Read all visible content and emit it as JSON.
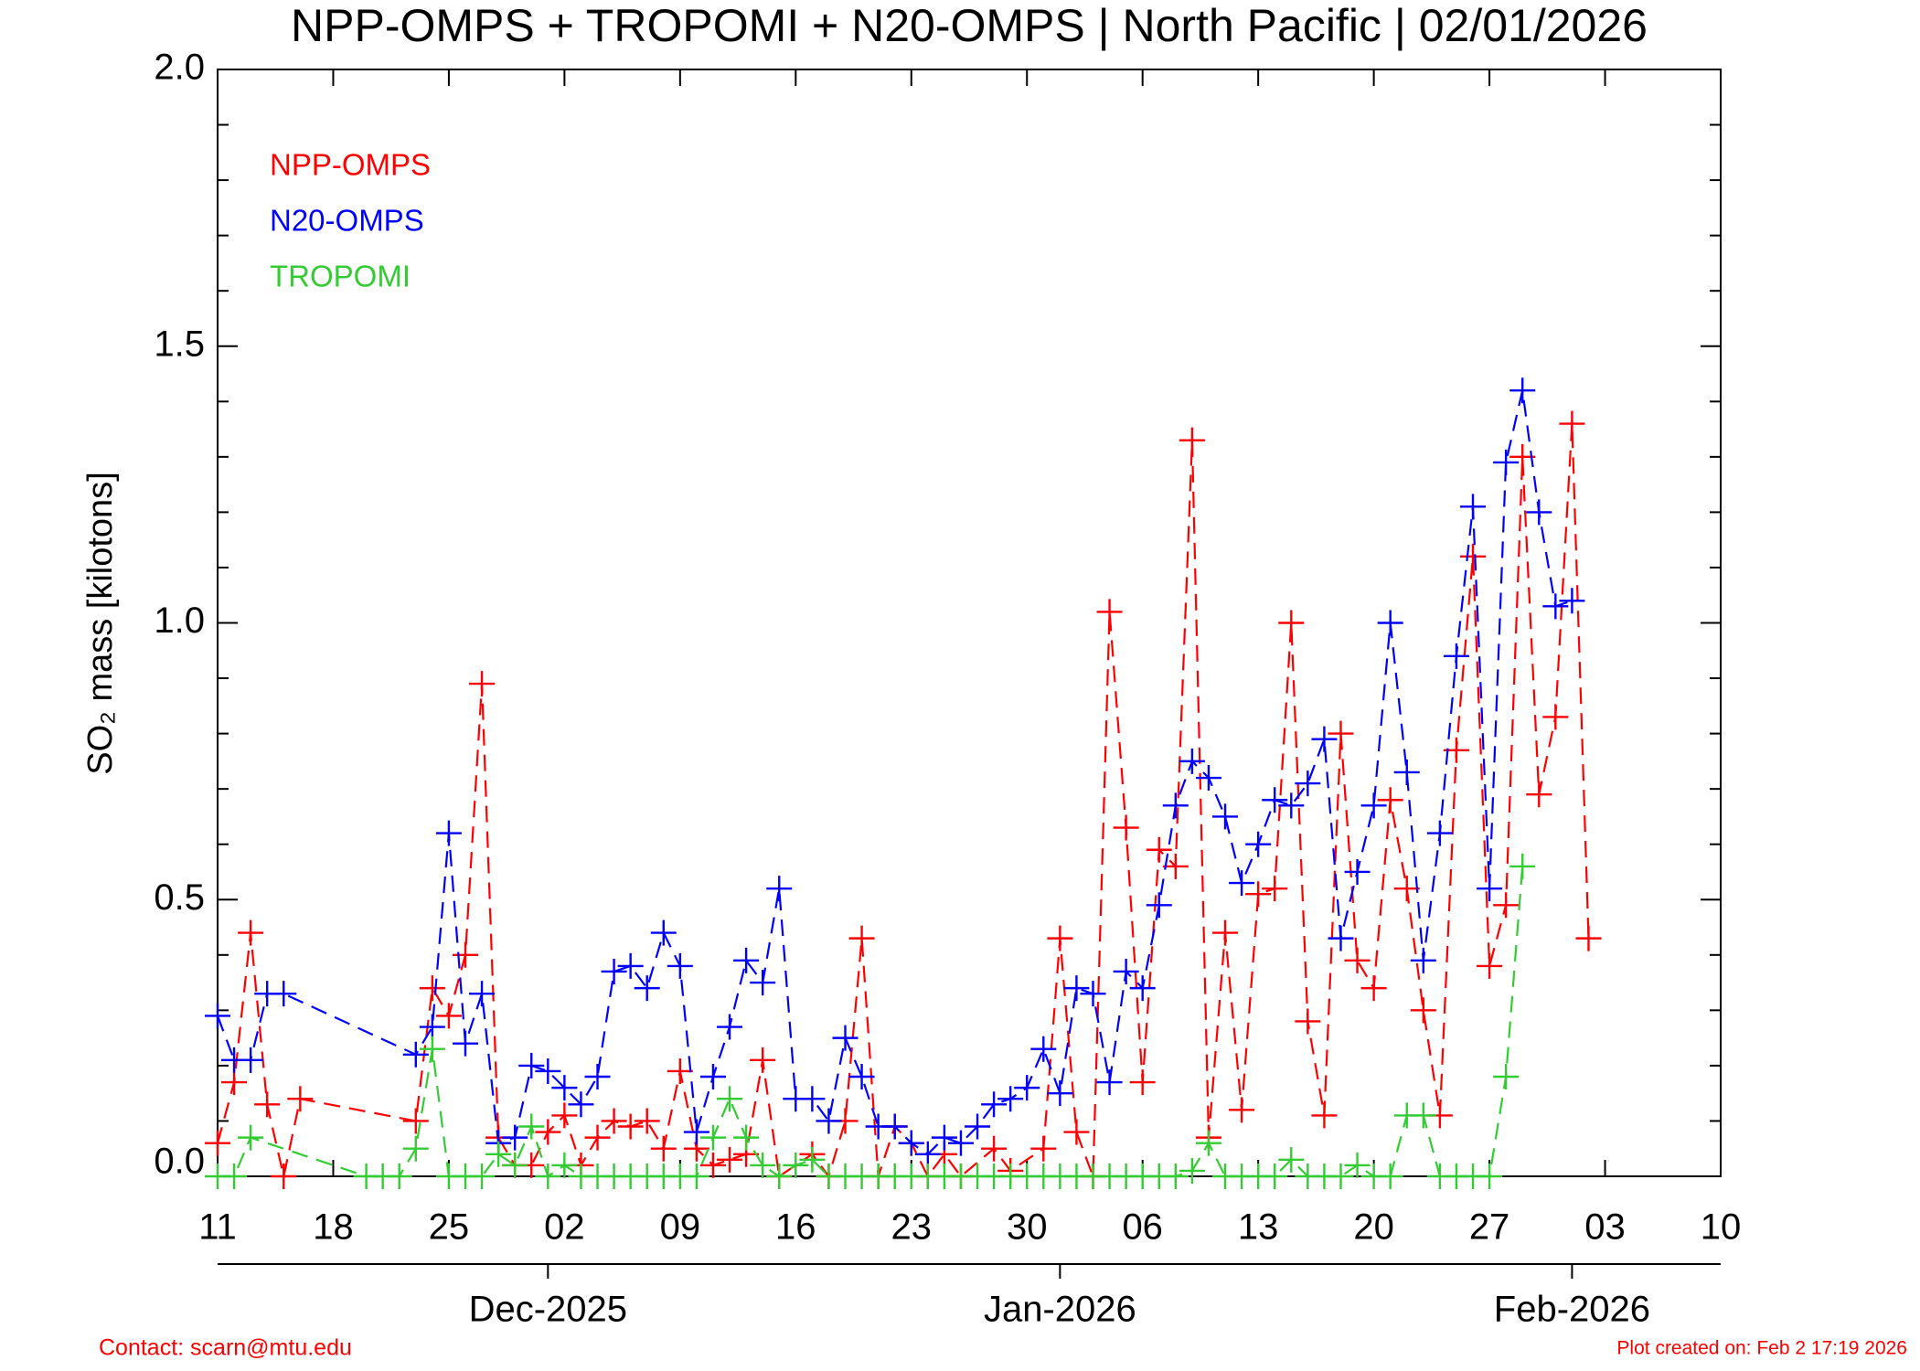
{
  "chart_data": {
    "type": "line",
    "title": "NPP-OMPS + TROPOMI + N20-OMPS | North Pacific | 02/01/2026",
    "y_label": "SO₂ mass [kilotons]",
    "contact": "Contact: scarn@mtu.edu",
    "created": "Plot created on: Feb  2 17:19 2026",
    "xlim": [
      "2025-11-11",
      "2026-02-10"
    ],
    "xticks": [
      {
        "value": "2025-11-11",
        "label": "11"
      },
      {
        "value": "2025-11-18",
        "label": "18"
      },
      {
        "value": "2025-11-25",
        "label": "25"
      },
      {
        "value": "2025-12-02",
        "label": "02"
      },
      {
        "value": "2025-12-09",
        "label": "09"
      },
      {
        "value": "2025-12-16",
        "label": "16"
      },
      {
        "value": "2025-12-23",
        "label": "23"
      },
      {
        "value": "2025-12-30",
        "label": "30"
      },
      {
        "value": "2026-01-06",
        "label": "06"
      },
      {
        "value": "2026-01-13",
        "label": "13"
      },
      {
        "value": "2026-01-20",
        "label": "20"
      },
      {
        "value": "2026-01-27",
        "label": "27"
      },
      {
        "value": "2026-02-03",
        "label": "03"
      },
      {
        "value": "2026-02-10",
        "label": "10"
      }
    ],
    "month_ticks": [
      {
        "value": "2025-12-01",
        "label": "Dec-2025"
      },
      {
        "value": "2026-01-01",
        "label": "Jan-2026"
      },
      {
        "value": "2026-02-01",
        "label": "Feb-2026"
      }
    ],
    "ylim": [
      0,
      2.0
    ],
    "yticks": [
      {
        "value": 0,
        "label": "0.0"
      },
      0.5,
      {
        "value": 1,
        "label": "1.0"
      },
      1.5,
      {
        "value": 2,
        "label": "2.0"
      }
    ],
    "yminorticks": [
      0.1,
      0.2,
      0.3,
      0.4,
      0.6,
      0.7,
      0.8,
      0.9,
      1.1,
      1.2,
      1.3,
      1.4,
      1.6,
      1.7,
      1.8,
      1.9
    ],
    "series": [
      {
        "name": "NPP-OMPS",
        "color": "#ff0000",
        "x": [
          "2025-11-11",
          "2025-11-12",
          "2025-11-13",
          "2025-11-14",
          "2025-11-15",
          "2025-11-16",
          "2025-11-23",
          "2025-11-24",
          "2025-11-25",
          "2025-11-26",
          "2025-11-27",
          "2025-11-28",
          "2025-11-29",
          "2025-11-30",
          "2025-12-01",
          "2025-12-02",
          "2025-12-03",
          "2025-12-04",
          "2025-12-05",
          "2025-12-06",
          "2025-12-07",
          "2025-12-08",
          "2025-12-09",
          "2025-12-10",
          "2025-12-11",
          "2025-12-12",
          "2025-12-13",
          "2025-12-14",
          "2025-12-15",
          "2025-12-17",
          "2025-12-18",
          "2025-12-19",
          "2025-12-20",
          "2025-12-21",
          "2025-12-22",
          "2025-12-23",
          "2025-12-24",
          "2025-12-25",
          "2025-12-26",
          "2025-12-28",
          "2025-12-29",
          "2025-12-31",
          "2026-01-01",
          "2026-01-02",
          "2026-01-03",
          "2026-01-04",
          "2026-01-05",
          "2026-01-06",
          "2026-01-07",
          "2026-01-08",
          "2026-01-09",
          "2026-01-10",
          "2026-01-11",
          "2026-01-12",
          "2026-01-13",
          "2026-01-14",
          "2026-01-15",
          "2026-01-16",
          "2026-01-17",
          "2026-01-18",
          "2026-01-19",
          "2026-01-20",
          "2026-01-21",
          "2026-01-22",
          "2026-01-23",
          "2026-01-24",
          "2026-01-25",
          "2026-01-26",
          "2026-01-27",
          "2026-01-28",
          "2026-01-29",
          "2026-01-30",
          "2026-01-31",
          "2026-02-01",
          "2026-02-02"
        ],
        "values": [
          0.06,
          0.17,
          0.44,
          0.13,
          0.0,
          0.14,
          0.1,
          0.34,
          0.29,
          0.4,
          0.89,
          0.07,
          0.02,
          0.02,
          0.08,
          0.11,
          0.02,
          0.07,
          0.1,
          0.09,
          0.1,
          0.05,
          0.19,
          0.05,
          0.02,
          0.03,
          0.04,
          0.21,
          0.0,
          0.04,
          0.0,
          0.1,
          0.43,
          0.0,
          0.09,
          0.06,
          0.0,
          0.04,
          0.0,
          0.05,
          0.01,
          0.05,
          0.43,
          0.08,
          0.0,
          1.02,
          0.63,
          0.17,
          0.59,
          0.56,
          1.33,
          0.07,
          0.44,
          0.12,
          0.51,
          0.52,
          1.0,
          0.28,
          0.11,
          0.8,
          0.39,
          0.34,
          0.68,
          0.52,
          0.3,
          0.11,
          0.77,
          1.12,
          0.38,
          0.49,
          1.3,
          0.69,
          0.83,
          1.36,
          0.43
        ]
      },
      {
        "name": "N20-OMPS",
        "color": "#0000ff",
        "x": [
          "2025-11-11",
          "2025-11-12",
          "2025-11-13",
          "2025-11-14",
          "2025-11-15",
          "2025-11-23",
          "2025-11-24",
          "2025-11-25",
          "2025-11-26",
          "2025-11-27",
          "2025-11-28",
          "2025-11-29",
          "2025-11-30",
          "2025-12-01",
          "2025-12-02",
          "2025-12-03",
          "2025-12-04",
          "2025-12-05",
          "2025-12-06",
          "2025-12-07",
          "2025-12-08",
          "2025-12-09",
          "2025-12-10",
          "2025-12-11",
          "2025-12-12",
          "2025-12-13",
          "2025-12-14",
          "2025-12-15",
          "2025-12-16",
          "2025-12-17",
          "2025-12-18",
          "2025-12-19",
          "2025-12-20",
          "2025-12-21",
          "2025-12-22",
          "2025-12-23",
          "2025-12-24",
          "2025-12-25",
          "2025-12-26",
          "2025-12-27",
          "2025-12-28",
          "2025-12-29",
          "2025-12-30",
          "2025-12-31",
          "2026-01-01",
          "2026-01-02",
          "2026-01-03",
          "2026-01-04",
          "2026-01-05",
          "2026-01-06",
          "2026-01-07",
          "2026-01-08",
          "2026-01-09",
          "2026-01-10",
          "2026-01-11",
          "2026-01-12",
          "2026-01-13",
          "2026-01-14",
          "2026-01-15",
          "2026-01-16",
          "2026-01-17",
          "2026-01-18",
          "2026-01-19",
          "2026-01-20",
          "2026-01-21",
          "2026-01-22",
          "2026-01-23",
          "2026-01-24",
          "2026-01-25",
          "2026-01-26",
          "2026-01-27",
          "2026-01-28",
          "2026-01-29",
          "2026-01-30",
          "2026-01-31",
          "2026-02-01"
        ],
        "values": [
          0.29,
          0.21,
          0.21,
          0.33,
          0.33,
          0.22,
          0.27,
          0.62,
          0.24,
          0.33,
          0.06,
          0.07,
          0.2,
          0.19,
          0.16,
          0.13,
          0.18,
          0.37,
          0.38,
          0.34,
          0.44,
          0.38,
          0.08,
          0.18,
          0.27,
          0.39,
          0.35,
          0.52,
          0.14,
          0.14,
          0.1,
          0.25,
          0.18,
          0.09,
          0.09,
          0.06,
          0.04,
          0.07,
          0.06,
          0.09,
          0.13,
          0.14,
          0.16,
          0.23,
          0.15,
          0.34,
          0.33,
          0.17,
          0.37,
          0.34,
          0.49,
          0.67,
          0.75,
          0.72,
          0.65,
          0.53,
          0.6,
          0.68,
          0.67,
          0.71,
          0.79,
          0.43,
          0.55,
          0.67,
          1.0,
          0.73,
          0.39,
          0.62,
          0.94,
          1.21,
          0.52,
          1.29,
          1.42,
          1.2,
          1.03,
          1.04
        ]
      },
      {
        "name": "TROPOMI",
        "color": "#33cc33",
        "x": [
          "2025-11-11",
          "2025-11-12",
          "2025-11-13",
          "2025-11-20",
          "2025-11-21",
          "2025-11-22",
          "2025-11-23",
          "2025-11-24",
          "2025-11-25",
          "2025-11-26",
          "2025-11-27",
          "2025-11-28",
          "2025-11-29",
          "2025-11-30",
          "2025-12-01",
          "2025-12-02",
          "2025-12-03",
          "2025-12-04",
          "2025-12-05",
          "2025-12-06",
          "2025-12-07",
          "2025-12-08",
          "2025-12-09",
          "2025-12-10",
          "2025-12-11",
          "2025-12-12",
          "2025-12-13",
          "2025-12-14",
          "2025-12-15",
          "2025-12-16",
          "2025-12-17",
          "2025-12-18",
          "2025-12-19",
          "2025-12-20",
          "2025-12-21",
          "2025-12-22",
          "2025-12-23",
          "2025-12-24",
          "2025-12-25",
          "2025-12-26",
          "2025-12-27",
          "2025-12-28",
          "2025-12-29",
          "2025-12-30",
          "2025-12-31",
          "2026-01-01",
          "2026-01-02",
          "2026-01-03",
          "2026-01-04",
          "2026-01-05",
          "2026-01-06",
          "2026-01-07",
          "2026-01-08",
          "2026-01-09",
          "2026-01-10",
          "2026-01-11",
          "2026-01-12",
          "2026-01-13",
          "2026-01-14",
          "2026-01-15",
          "2026-01-16",
          "2026-01-17",
          "2026-01-18",
          "2026-01-19",
          "2026-01-20",
          "2026-01-21",
          "2026-01-22",
          "2026-01-23",
          "2026-01-24",
          "2026-01-25",
          "2026-01-26",
          "2026-01-27",
          "2026-01-28",
          "2026-01-29"
        ],
        "values": [
          0,
          0,
          0.07,
          0,
          0,
          0,
          0.05,
          0.23,
          0,
          0,
          0,
          0.04,
          0.02,
          0.09,
          0,
          0.02,
          0,
          0,
          0,
          0,
          0,
          0,
          0,
          0,
          0.07,
          0.14,
          0.07,
          0.02,
          0,
          0.02,
          0.03,
          0,
          0,
          0,
          0,
          0,
          0,
          0,
          0,
          0,
          0,
          0,
          0,
          0,
          0,
          0,
          0,
          0,
          0,
          0,
          0,
          0,
          0,
          0.01,
          0.06,
          0,
          0,
          0,
          0,
          0.03,
          0,
          0,
          0,
          0.02,
          0,
          0,
          0.11,
          0.11,
          0,
          0,
          0,
          0,
          0.18,
          0.56
        ]
      }
    ]
  }
}
